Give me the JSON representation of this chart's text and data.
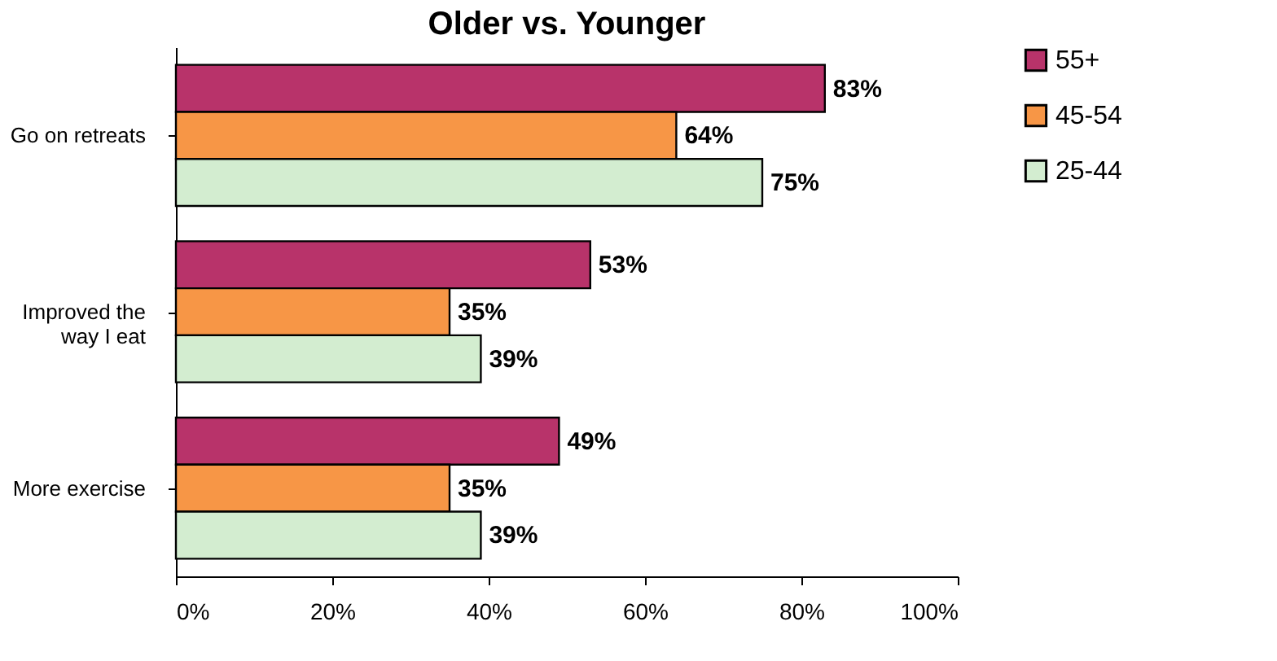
{
  "chart_data": {
    "type": "bar",
    "orientation": "horizontal",
    "title": "Older vs. Younger",
    "categories": [
      "Go on retreats",
      "Improved the way I eat",
      "More exercise"
    ],
    "series": [
      {
        "name": "55+",
        "color": "#b8336a",
        "values": [
          83,
          53,
          49
        ]
      },
      {
        "name": "45-54",
        "color": "#f79646",
        "values": [
          64,
          35,
          35
        ]
      },
      {
        "name": "25-44",
        "color": "#d3edd0",
        "values": [
          75,
          39,
          39
        ]
      }
    ],
    "xlim": [
      0,
      100
    ],
    "xticks": [
      {
        "value": 0,
        "label": "0%"
      },
      {
        "value": 20,
        "label": "20%"
      },
      {
        "value": 40,
        "label": "40%"
      },
      {
        "value": 60,
        "label": "60%"
      },
      {
        "value": 80,
        "label": "80%"
      },
      {
        "value": 100,
        "label": "100%"
      }
    ],
    "value_labels": [
      [
        "83%",
        "53%",
        "49%"
      ],
      [
        "64%",
        "35%",
        "35%"
      ],
      [
        "75%",
        "39%",
        "39%"
      ]
    ],
    "legend": "right",
    "grid": false
  }
}
